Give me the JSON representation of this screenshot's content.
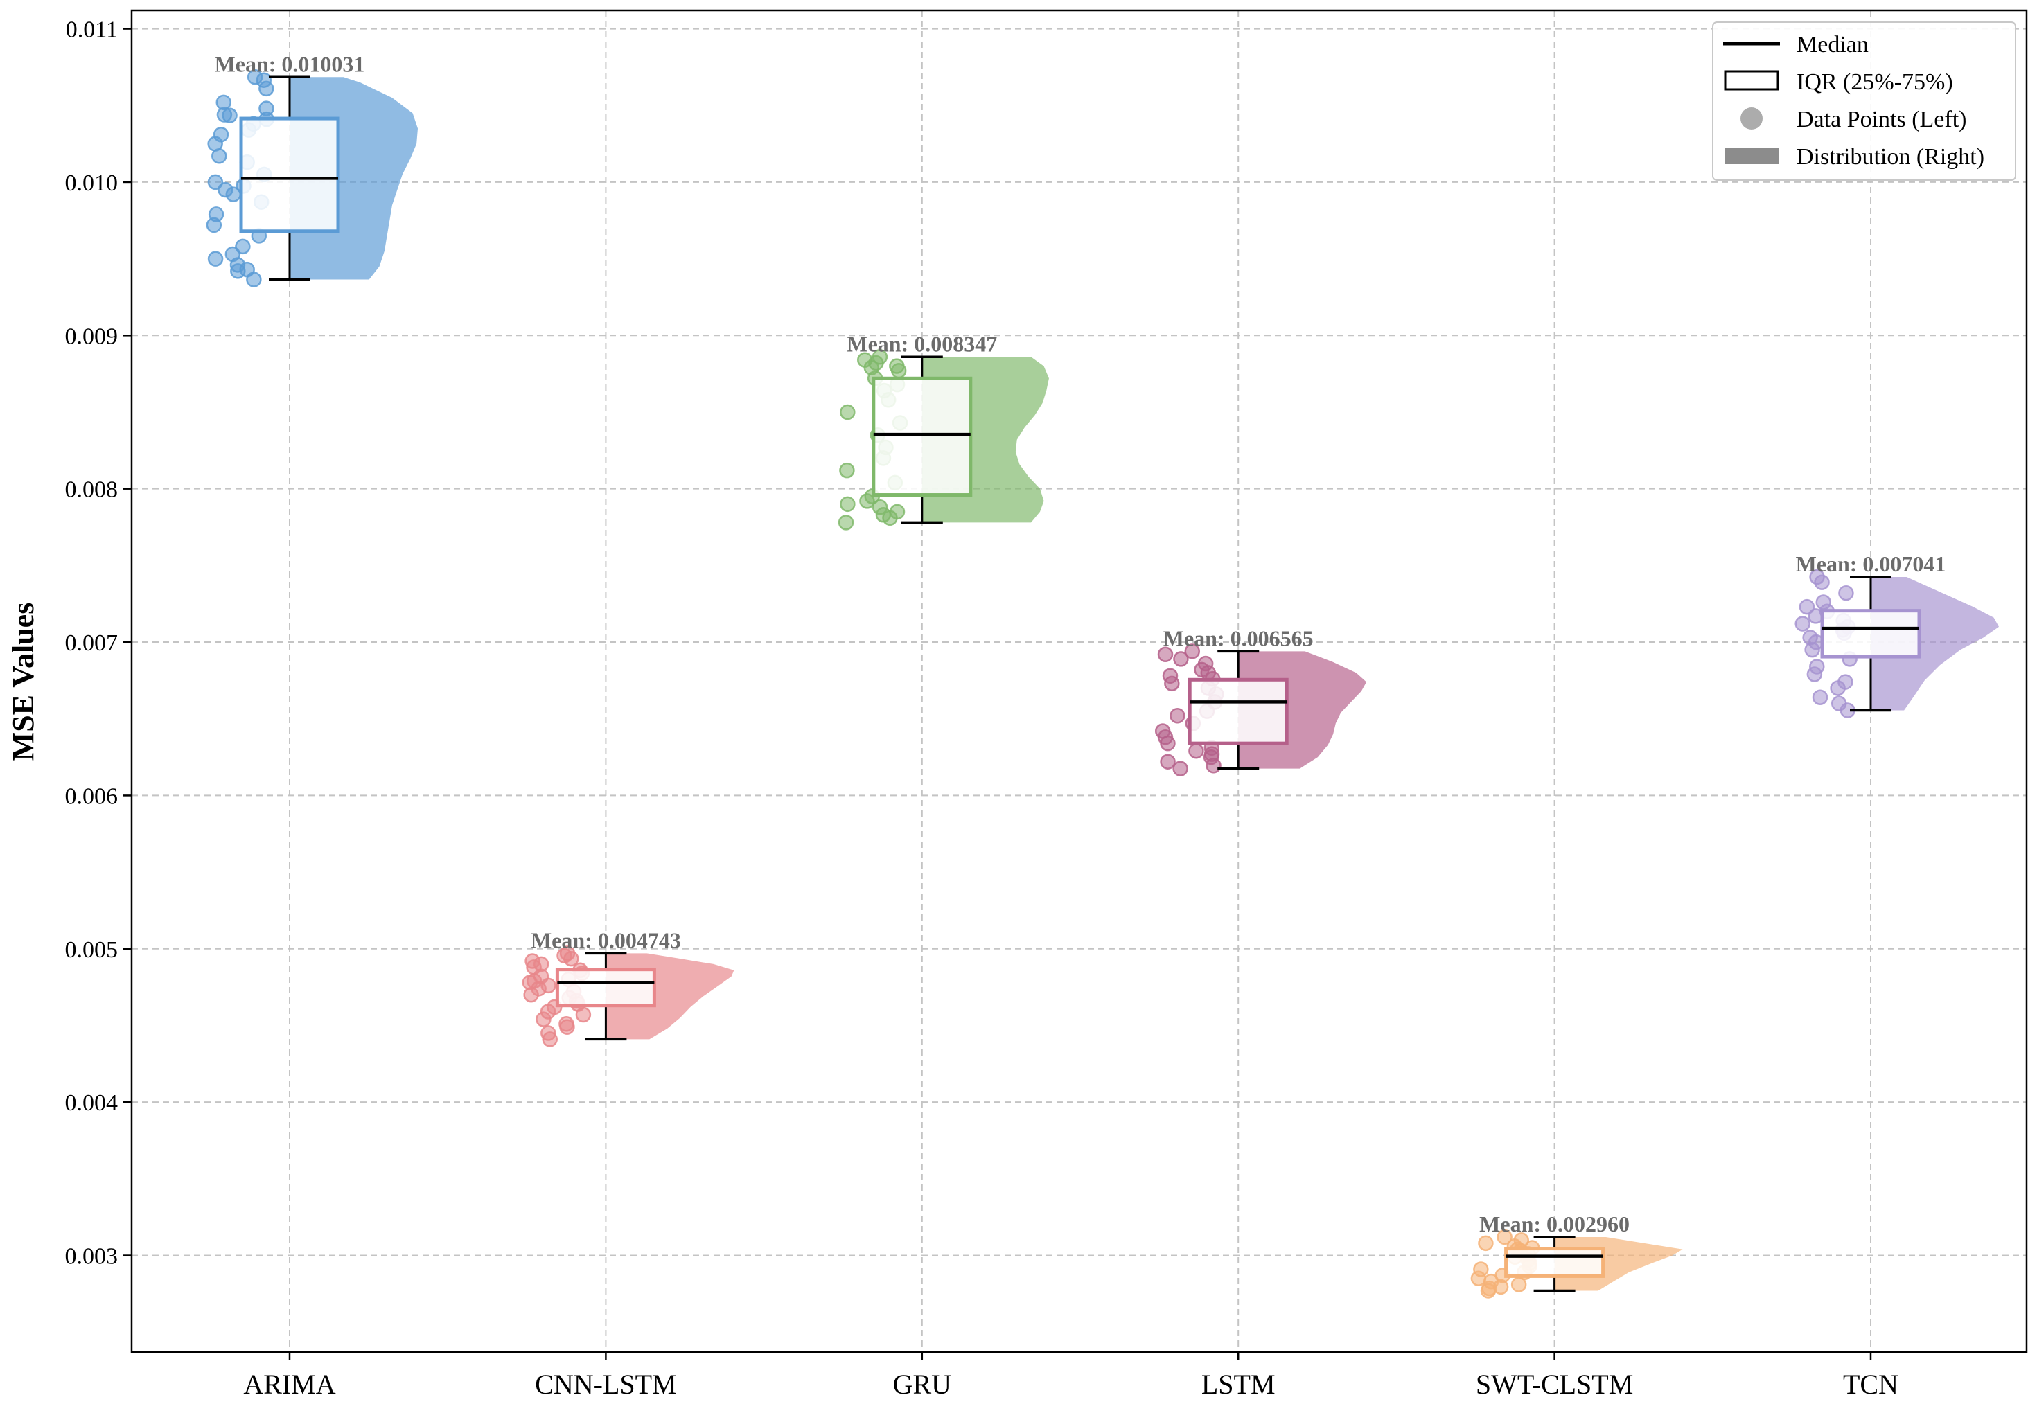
{
  "chart_data": {
    "type": "raincloud",
    "ylabel": "MSE Values",
    "xlabel": "",
    "ylim": [
      0.00237,
      0.01112
    ],
    "yticks": [
      0.003,
      0.004,
      0.005,
      0.006,
      0.007,
      0.008,
      0.009,
      0.01,
      0.011
    ],
    "ytick_labels": [
      "0.003",
      "0.004",
      "0.005",
      "0.006",
      "0.007",
      "0.008",
      "0.009",
      "0.010",
      "0.011"
    ],
    "grid": true,
    "legend_position": "top-right",
    "legend": [
      {
        "key": "median",
        "label": "Median"
      },
      {
        "key": "iqr",
        "label": "IQR (25%-75%)"
      },
      {
        "key": "points",
        "label": "Data Points (Left)"
      },
      {
        "key": "dist",
        "label": "Distribution (Right)"
      }
    ],
    "mean_prefix": "Mean: ",
    "categories": [
      "ARIMA",
      "CNN-LSTM",
      "GRU",
      "LSTM",
      "SWT-CLSTM",
      "TCN"
    ],
    "series": [
      {
        "category": "ARIMA",
        "color": "#5b9bd5",
        "mean": 0.010031,
        "mean_text": "0.010031",
        "min": 0.009365,
        "q1": 0.00968,
        "median": 0.010025,
        "q3": 0.010415,
        "max": 0.010685,
        "points": [
          0.010685,
          0.010665,
          0.01061,
          0.01052,
          0.01048,
          0.01044,
          0.010435,
          0.01041,
          0.01038,
          0.01034,
          0.01031,
          0.01025,
          0.01017,
          0.01013,
          0.01005,
          0.01,
          0.009975,
          0.00995,
          0.00992,
          0.00987,
          0.00979,
          0.00972,
          0.00965,
          0.00958,
          0.00953,
          0.0095,
          0.00946,
          0.00943,
          0.00942,
          0.009365
        ],
        "density": [
          [
            0.009365,
            0.62
          ],
          [
            0.00945,
            0.7
          ],
          [
            0.00955,
            0.74
          ],
          [
            0.00965,
            0.76
          ],
          [
            0.00975,
            0.78
          ],
          [
            0.00985,
            0.8
          ],
          [
            0.00995,
            0.84
          ],
          [
            0.01005,
            0.88
          ],
          [
            0.01015,
            0.94
          ],
          [
            0.01025,
            0.99
          ],
          [
            0.01035,
            1.0
          ],
          [
            0.01045,
            0.96
          ],
          [
            0.01055,
            0.8
          ],
          [
            0.01065,
            0.55
          ],
          [
            0.010685,
            0.42
          ]
        ]
      },
      {
        "category": "CNN-LSTM",
        "color": "#e8868a",
        "mean": 0.004743,
        "mean_text": "0.004743",
        "min": 0.00441,
        "q1": 0.00463,
        "median": 0.00478,
        "q3": 0.004865,
        "max": 0.00497,
        "points": [
          0.00497,
          0.004955,
          0.004935,
          0.00492,
          0.0049,
          0.00488,
          0.00486,
          0.00484,
          0.00482,
          0.0048,
          0.00479,
          0.00478,
          0.00476,
          0.00474,
          0.00472,
          0.0047,
          0.00468,
          0.00466,
          0.00464,
          0.00462,
          0.00459,
          0.00457,
          0.00454,
          0.00451,
          0.00449,
          0.00445,
          0.00441
        ],
        "density": [
          [
            0.00441,
            0.34
          ],
          [
            0.00448,
            0.48
          ],
          [
            0.00455,
            0.58
          ],
          [
            0.00462,
            0.66
          ],
          [
            0.00469,
            0.76
          ],
          [
            0.00476,
            0.88
          ],
          [
            0.00482,
            0.98
          ],
          [
            0.00486,
            1.0
          ],
          [
            0.0049,
            0.84
          ],
          [
            0.00494,
            0.55
          ],
          [
            0.00497,
            0.32
          ]
        ]
      },
      {
        "category": "GRU",
        "color": "#7fb86a",
        "mean": 0.008347,
        "mean_text": "0.008347",
        "min": 0.00778,
        "q1": 0.00796,
        "median": 0.008355,
        "q3": 0.00872,
        "max": 0.00886,
        "points": [
          0.00886,
          0.00884,
          0.00882,
          0.0088,
          0.00879,
          0.00877,
          0.00872,
          0.00868,
          0.00864,
          0.00858,
          0.0085,
          0.00843,
          0.00835,
          0.00827,
          0.0082,
          0.00812,
          0.00804,
          0.00795,
          0.00792,
          0.0079,
          0.00788,
          0.00785,
          0.00783,
          0.00781,
          0.00778
        ],
        "density": [
          [
            0.00778,
            0.85
          ],
          [
            0.00785,
            0.92
          ],
          [
            0.00792,
            0.95
          ],
          [
            0.008,
            0.92
          ],
          [
            0.00808,
            0.83
          ],
          [
            0.00816,
            0.76
          ],
          [
            0.00824,
            0.73
          ],
          [
            0.00832,
            0.74
          ],
          [
            0.0084,
            0.8
          ],
          [
            0.00848,
            0.88
          ],
          [
            0.00856,
            0.94
          ],
          [
            0.00864,
            0.97
          ],
          [
            0.00872,
            0.99
          ],
          [
            0.0088,
            0.95
          ],
          [
            0.00886,
            0.85
          ]
        ]
      },
      {
        "category": "LSTM",
        "color": "#b5608a",
        "mean": 0.006565,
        "mean_text": "0.006565",
        "min": 0.006175,
        "q1": 0.00634,
        "median": 0.00661,
        "q3": 0.006755,
        "max": 0.00694,
        "points": [
          0.00694,
          0.00692,
          0.00689,
          0.00686,
          0.00682,
          0.0068,
          0.00678,
          0.00676,
          0.00673,
          0.0067,
          0.00666,
          0.00661,
          0.00655,
          0.00652,
          0.00647,
          0.00642,
          0.00638,
          0.00634,
          0.00631,
          0.00629,
          0.00627,
          0.00625,
          0.00622,
          0.006195,
          0.006175
        ],
        "density": [
          [
            0.006175,
            0.48
          ],
          [
            0.00625,
            0.62
          ],
          [
            0.00633,
            0.7
          ],
          [
            0.0064,
            0.74
          ],
          [
            0.00647,
            0.76
          ],
          [
            0.00654,
            0.8
          ],
          [
            0.00661,
            0.88
          ],
          [
            0.00668,
            0.96
          ],
          [
            0.00674,
            1.0
          ],
          [
            0.0068,
            0.92
          ],
          [
            0.00687,
            0.74
          ],
          [
            0.00694,
            0.52
          ]
        ]
      },
      {
        "category": "SWT-CLSTM",
        "color": "#f5b277",
        "mean": 0.00296,
        "mean_text": "0.002960",
        "min": 0.00277,
        "q1": 0.002865,
        "median": 0.002995,
        "q3": 0.003045,
        "max": 0.00312,
        "points": [
          0.00312,
          0.0031,
          0.00308,
          0.00306,
          0.00305,
          0.00304,
          0.00303,
          0.00301,
          0.00299,
          0.00297,
          0.00295,
          0.00293,
          0.00291,
          0.00289,
          0.00287,
          0.00285,
          0.00283,
          0.00281,
          0.002795,
          0.002785,
          0.00277
        ],
        "density": [
          [
            0.00277,
            0.34
          ],
          [
            0.00283,
            0.46
          ],
          [
            0.00289,
            0.58
          ],
          [
            0.00295,
            0.76
          ],
          [
            0.003,
            0.92
          ],
          [
            0.00304,
            1.0
          ],
          [
            0.00308,
            0.7
          ],
          [
            0.00312,
            0.4
          ]
        ]
      },
      {
        "category": "TCN",
        "color": "#a693d0",
        "mean": 0.007041,
        "mean_text": "0.007041",
        "min": 0.006555,
        "q1": 0.006905,
        "median": 0.00709,
        "q3": 0.007205,
        "max": 0.007425,
        "points": [
          0.007425,
          0.00739,
          0.00732,
          0.00726,
          0.00723,
          0.0072,
          0.00717,
          0.00714,
          0.00712,
          0.0071,
          0.00708,
          0.00706,
          0.00703,
          0.007,
          0.00695,
          0.00689,
          0.00684,
          0.00679,
          0.00674,
          0.0067,
          0.00664,
          0.0066,
          0.006555
        ],
        "density": [
          [
            0.006555,
            0.26
          ],
          [
            0.00665,
            0.34
          ],
          [
            0.00675,
            0.42
          ],
          [
            0.00685,
            0.54
          ],
          [
            0.00695,
            0.7
          ],
          [
            0.00703,
            0.88
          ],
          [
            0.0071,
            1.0
          ],
          [
            0.00716,
            0.96
          ],
          [
            0.00723,
            0.8
          ],
          [
            0.00732,
            0.56
          ],
          [
            0.007425,
            0.28
          ]
        ]
      }
    ]
  }
}
